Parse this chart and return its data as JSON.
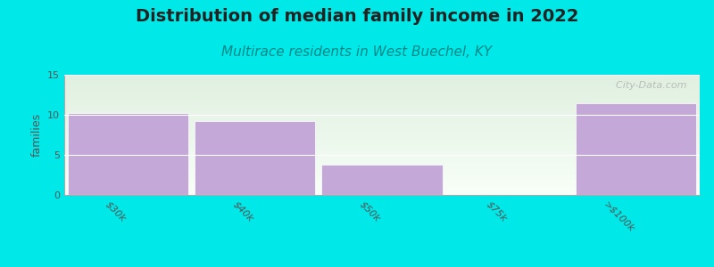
{
  "title": "Distribution of median family income in 2022",
  "subtitle": "Multirace residents in West Buechel, KY",
  "categories": [
    "$30k",
    "$40k",
    "$50k",
    "$75k",
    ">$100k"
  ],
  "values": [
    10.2,
    9.2,
    3.8,
    0.0,
    11.5
  ],
  "bar_color": "#c4a8d8",
  "background_color": "#00e8e8",
  "ylabel": "families",
  "ylim": [
    0,
    15
  ],
  "yticks": [
    0,
    5,
    10,
    15
  ],
  "title_fontsize": 14,
  "subtitle_fontsize": 11,
  "subtitle_color": "#008888",
  "ylabel_fontsize": 9,
  "tick_label_fontsize": 8,
  "watermark": "  City-Data.com",
  "bg_top_color": "#e0f0e0",
  "bg_bottom_color": "#f8fff8",
  "bar_width": 0.95
}
